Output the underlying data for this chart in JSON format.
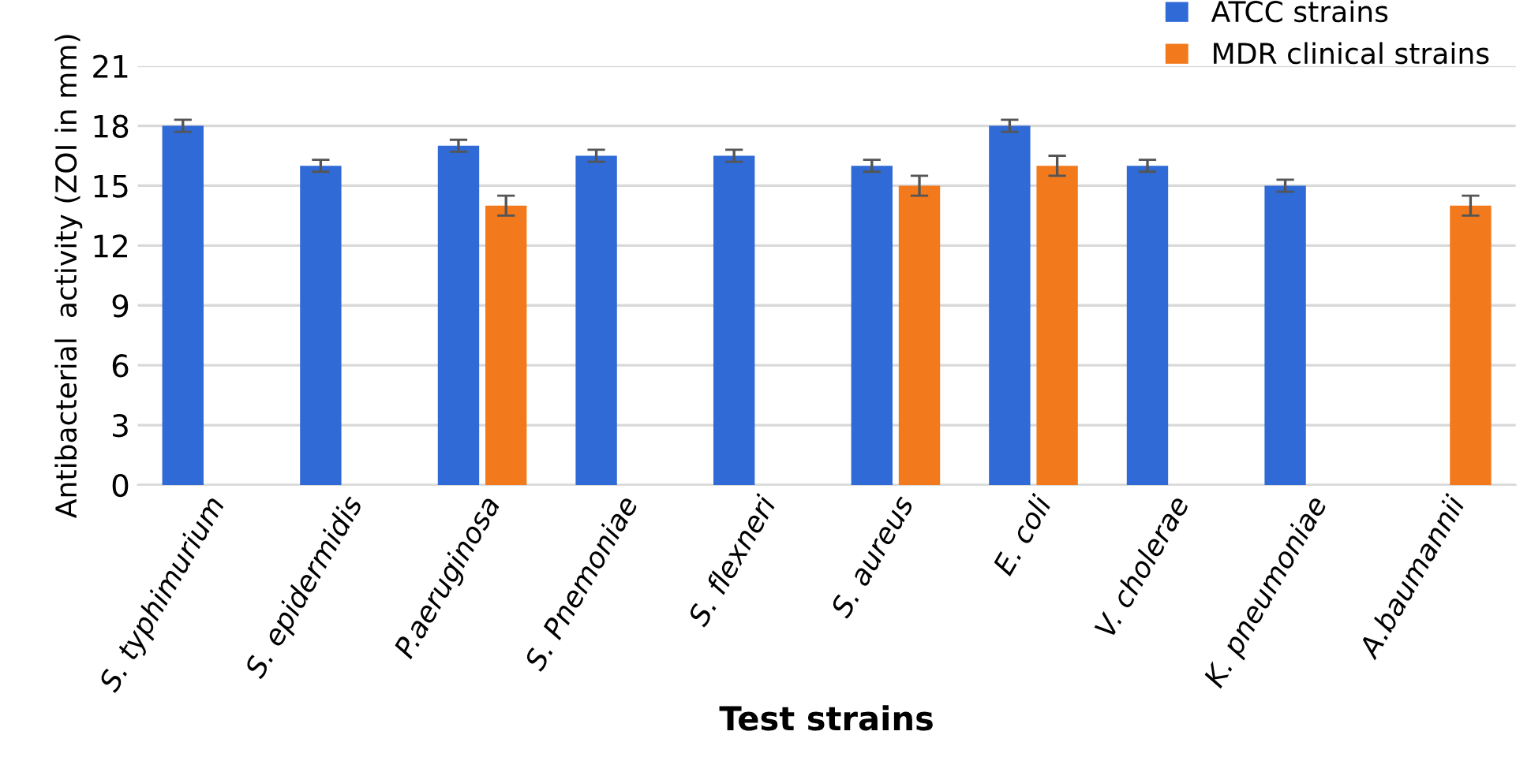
{
  "chart_data": {
    "type": "bar",
    "xlabel": "Test strains",
    "ylabel": "Antibacterial  activity (ZOI in mm)",
    "categories": [
      "S. typhimurium",
      "S. epidermidis",
      "P.aeruginosa",
      "S. Pnemoniae",
      "S. flexneri",
      "S. aureus",
      "E. coli",
      "V. cholerae",
      "K. pneumoniae",
      "A.baumannii"
    ],
    "series": [
      {
        "name": "ATCC strains",
        "color": "#2f6ad6",
        "values": [
          18,
          16,
          17,
          16.5,
          16.5,
          16,
          18,
          16,
          15,
          null
        ],
        "errors": [
          0.3,
          0.3,
          0.3,
          0.3,
          0.3,
          0.3,
          0.3,
          0.3,
          0.3,
          null
        ]
      },
      {
        "name": "MDR clinical strains",
        "color": "#f27a1c",
        "values": [
          null,
          null,
          14,
          null,
          null,
          15,
          16,
          null,
          null,
          14
        ],
        "errors": [
          null,
          null,
          0.5,
          null,
          null,
          0.5,
          0.5,
          null,
          null,
          0.5
        ]
      }
    ],
    "ylim": [
      0,
      21
    ],
    "yticks": [
      0,
      3,
      6,
      9,
      12,
      15,
      18,
      21
    ],
    "grid": "y",
    "legend": "top right"
  }
}
